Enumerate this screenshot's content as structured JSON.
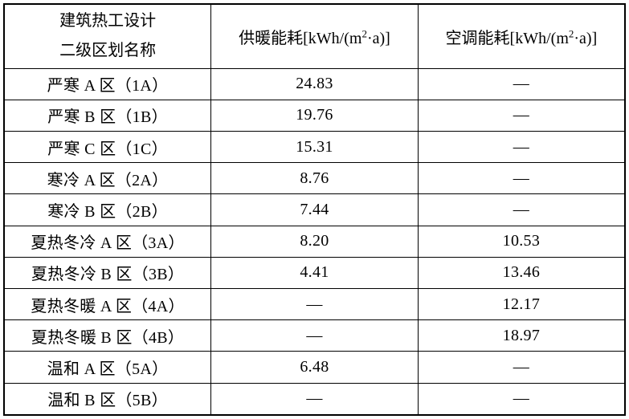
{
  "table": {
    "header": {
      "zone_line1": "建筑热工设计",
      "zone_line2": "二级区划名称",
      "heating": {
        "prefix": "供暖能耗[kWh/(m",
        "sup": "2",
        "suffix": "·a)]"
      },
      "cooling": {
        "prefix": "空调能耗[kWh/(m",
        "sup": "2",
        "suffix": "·a)]"
      }
    },
    "rows": [
      {
        "zone": "严寒 A 区（1A）",
        "heating": "24.83",
        "cooling": "—"
      },
      {
        "zone": "严寒 B 区（1B）",
        "heating": "19.76",
        "cooling": "—"
      },
      {
        "zone": "严寒 C 区（1C）",
        "heating": "15.31",
        "cooling": "—"
      },
      {
        "zone": "寒冷 A 区（2A）",
        "heating": "8.76",
        "cooling": "—"
      },
      {
        "zone": "寒冷 B 区（2B）",
        "heating": "7.44",
        "cooling": "—"
      },
      {
        "zone": "夏热冬冷 A 区（3A）",
        "heating": "8.20",
        "cooling": "10.53"
      },
      {
        "zone": "夏热冬冷 B 区（3B）",
        "heating": "4.41",
        "cooling": "13.46"
      },
      {
        "zone": "夏热冬暖 A 区（4A）",
        "heating": "—",
        "cooling": "12.17"
      },
      {
        "zone": "夏热冬暖 B 区（4B）",
        "heating": "—",
        "cooling": "18.97"
      },
      {
        "zone": "温和 A 区（5A）",
        "heating": "6.48",
        "cooling": "—"
      },
      {
        "zone": "温和 B 区（5B）",
        "heating": "—",
        "cooling": "—"
      }
    ]
  }
}
